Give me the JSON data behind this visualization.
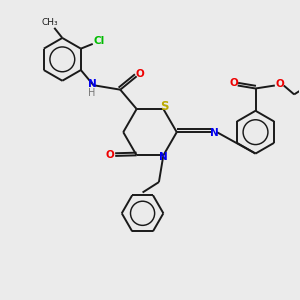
{
  "bg_color": "#ebebeb",
  "bond_color": "#1a1a1a",
  "atom_colors": {
    "N": "#0000ee",
    "O": "#ee0000",
    "S": "#bbaa00",
    "Cl": "#00bb00",
    "H": "#777777",
    "C": "#1a1a1a"
  },
  "font_size": 7.0,
  "line_width": 1.4
}
